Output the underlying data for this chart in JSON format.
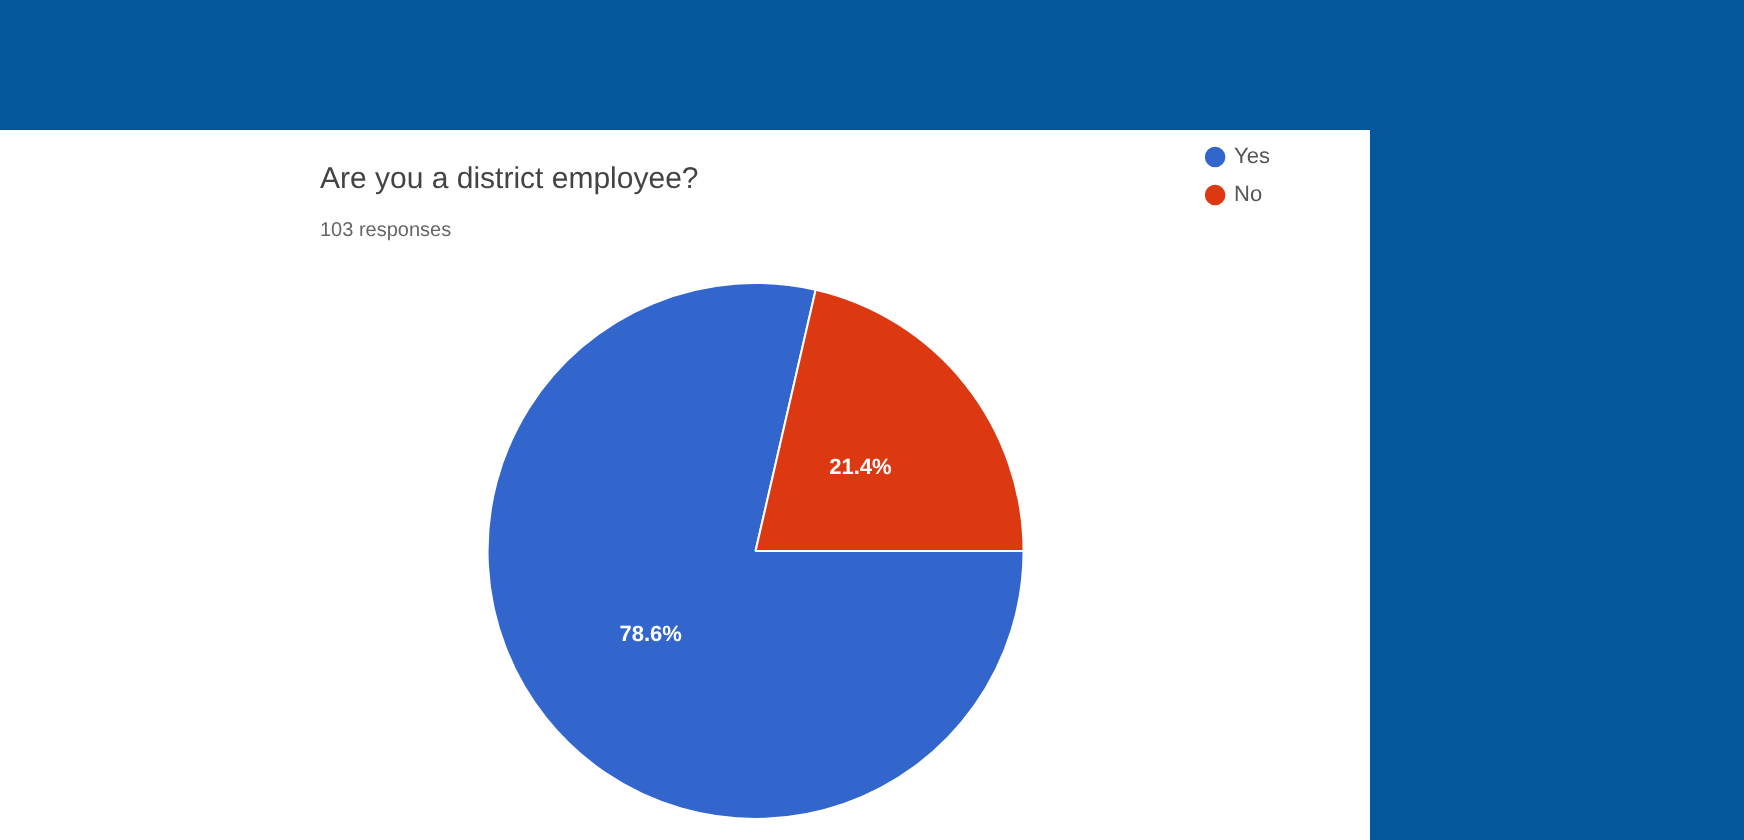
{
  "chart_data": {
    "type": "pie",
    "title": "Are you a district employee?",
    "subtitle": "103 responses",
    "categories": [
      "Yes",
      "No"
    ],
    "values": [
      78.6,
      21.4
    ],
    "colors": [
      "#3366cc",
      "#dc3912"
    ],
    "value_labels": [
      "78.6%",
      "21.4%"
    ],
    "legend": "top right"
  }
}
